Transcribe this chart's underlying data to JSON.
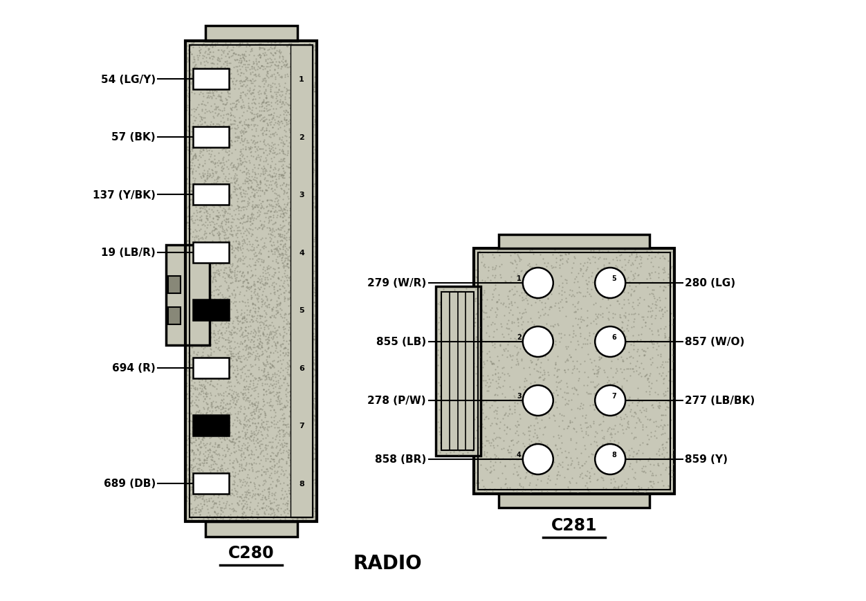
{
  "background_color": "#ffffff",
  "title": "RADIO",
  "c280_label": "C280",
  "c281_label": "C281",
  "c280_pins": [
    {
      "num": "1",
      "label": "54 (LG/Y)",
      "filled": false
    },
    {
      "num": "2",
      "label": "57 (BK)",
      "filled": false
    },
    {
      "num": "3",
      "label": "137 (Y/BK)",
      "filled": false
    },
    {
      "num": "4",
      "label": "19 (LB/R)",
      "filled": false
    },
    {
      "num": "5",
      "label": "",
      "filled": true
    },
    {
      "num": "6",
      "label": "694 (R)",
      "filled": false
    },
    {
      "num": "7",
      "label": "",
      "filled": true
    },
    {
      "num": "8",
      "label": "689 (DB)",
      "filled": false
    }
  ],
  "c281_left_pins": [
    {
      "num": "1",
      "label": "279 (W/R)"
    },
    {
      "num": "2",
      "label": "855 (LB)"
    },
    {
      "num": "3",
      "label": "278 (P/W)"
    },
    {
      "num": "4",
      "label": "858 (BR)"
    }
  ],
  "c281_right_pins": [
    {
      "num": "5",
      "label": "280 (LG)"
    },
    {
      "num": "6",
      "label": "857 (W/O)"
    },
    {
      "num": "7",
      "label": "277 (LB/BK)"
    },
    {
      "num": "8",
      "label": "859 (Y)"
    }
  ],
  "stipple_color": "#c8c8b8",
  "connector_edge": "#000000",
  "pin_empty_color": "#ffffff",
  "pin_filled_color": "#000000"
}
